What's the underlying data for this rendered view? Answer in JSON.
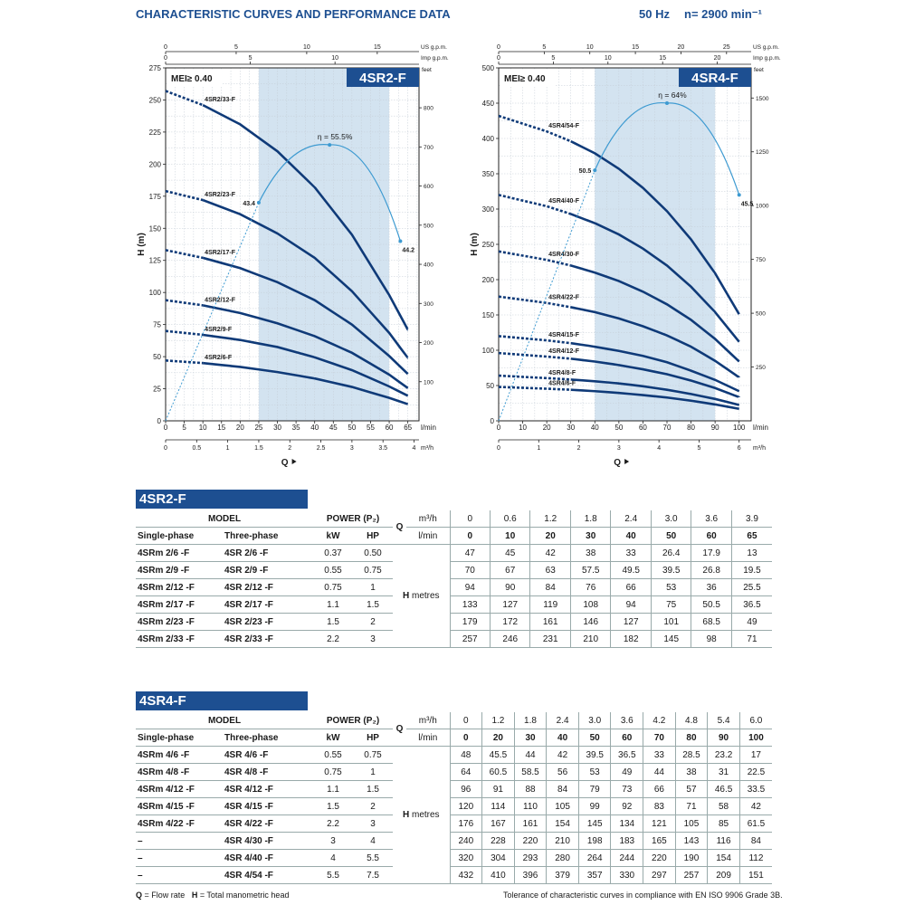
{
  "header": {
    "title": "CHARACTERISTIC CURVES AND PERFORMANCE DATA",
    "freq": "50 Hz",
    "speed": "n= 2900 min⁻¹"
  },
  "chart_data": [
    {
      "type": "line",
      "title": "4SR2-F",
      "mei": "MEI≥ 0.40",
      "xlabel": "Q",
      "ylabel": "H (m)",
      "x_unit": "l/min",
      "x_unit_m3": "m³/h",
      "top_unit_us": "US g.p.m.",
      "top_unit_imp": "Imp g.p.m.",
      "right_unit": "feet",
      "xlim": [
        0,
        68
      ],
      "ylim": [
        0,
        275
      ],
      "x_ticks": [
        0,
        5,
        10,
        15,
        20,
        25,
        30,
        35,
        40,
        45,
        50,
        55,
        60,
        65
      ],
      "y_ticks": [
        0,
        25,
        50,
        75,
        100,
        125,
        150,
        175,
        200,
        225,
        250,
        275
      ],
      "m3h_ticks": [
        "0",
        "0.5",
        "1",
        "1.5",
        "2",
        "2.5",
        "3",
        "3.5",
        "4"
      ],
      "us_ticks": [
        "0",
        "5",
        "10",
        "15"
      ],
      "imp_ticks": [
        "0",
        "5",
        "10"
      ],
      "feet_ticks": [
        "100",
        "200",
        "300",
        "400",
        "500",
        "600",
        "700",
        "800"
      ],
      "bep_range": [
        25,
        60
      ],
      "series": [
        {
          "name": "4SR2/6-F",
          "x": [
            0,
            10,
            20,
            30,
            40,
            50,
            60,
            65
          ],
          "values": [
            47,
            45,
            42,
            38,
            33,
            26.4,
            17.9,
            13
          ]
        },
        {
          "name": "4SR2/9-F",
          "x": [
            0,
            10,
            20,
            30,
            40,
            50,
            60,
            65
          ],
          "values": [
            70,
            67,
            63,
            57.5,
            49.5,
            39.5,
            26.8,
            19.5
          ]
        },
        {
          "name": "4SR2/12-F",
          "x": [
            0,
            10,
            20,
            30,
            40,
            50,
            60,
            65
          ],
          "values": [
            94,
            90,
            84,
            76,
            66,
            53,
            36,
            25.5
          ]
        },
        {
          "name": "4SR2/17-F",
          "x": [
            0,
            10,
            20,
            30,
            40,
            50,
            60,
            65
          ],
          "values": [
            133,
            127,
            119,
            108,
            94,
            75,
            50.5,
            36.5
          ]
        },
        {
          "name": "4SR2/23-F",
          "x": [
            0,
            10,
            20,
            30,
            40,
            50,
            60,
            65
          ],
          "values": [
            179,
            172,
            161,
            146,
            127,
            101,
            68.5,
            49
          ]
        },
        {
          "name": "4SR2/33-F",
          "x": [
            0,
            10,
            20,
            30,
            40,
            50,
            60,
            65
          ],
          "values": [
            257,
            246,
            231,
            210,
            182,
            145,
            98,
            71
          ]
        }
      ],
      "efficiency": {
        "label": "η = 55.5%",
        "peak_x": 44,
        "peak_label": "55.5",
        "points": [
          {
            "x": 25,
            "label": "43.4"
          },
          {
            "x": 63,
            "label": "44.2"
          }
        ]
      }
    },
    {
      "type": "line",
      "title": "4SR4-F",
      "mei": "MEI≥ 0.40",
      "xlabel": "Q",
      "ylabel": "H (m)",
      "x_unit": "l/min",
      "x_unit_m3": "m³/h",
      "top_unit_us": "US g.p.m.",
      "top_unit_imp": "Imp g.p.m.",
      "right_unit": "feet",
      "xlim": [
        0,
        105
      ],
      "ylim": [
        0,
        500
      ],
      "x_ticks": [
        0,
        10,
        20,
        30,
        40,
        50,
        60,
        70,
        80,
        90,
        100
      ],
      "y_ticks": [
        0,
        50,
        100,
        150,
        200,
        250,
        300,
        350,
        400,
        450,
        500
      ],
      "m3h_ticks": [
        "0",
        "1",
        "2",
        "3",
        "4",
        "5",
        "6"
      ],
      "us_ticks": [
        "0",
        "5",
        "10",
        "15",
        "20",
        "25"
      ],
      "imp_ticks": [
        "0",
        "5",
        "10",
        "15",
        "20"
      ],
      "feet_ticks": [
        "250",
        "500",
        "750",
        "1000",
        "1250",
        "1500"
      ],
      "bep_range": [
        40,
        90
      ],
      "series": [
        {
          "name": "4SR4/6-F",
          "x": [
            0,
            20,
            30,
            40,
            50,
            60,
            70,
            80,
            90,
            100
          ],
          "values": [
            48,
            45.5,
            44,
            42,
            39.5,
            36.5,
            33,
            28.5,
            23.2,
            17
          ]
        },
        {
          "name": "4SR4/8-F",
          "x": [
            0,
            20,
            30,
            40,
            50,
            60,
            70,
            80,
            90,
            100
          ],
          "values": [
            64,
            60.5,
            58.5,
            56,
            53,
            49,
            44,
            38,
            31,
            22.5
          ]
        },
        {
          "name": "4SR4/12-F",
          "x": [
            0,
            20,
            30,
            40,
            50,
            60,
            70,
            80,
            90,
            100
          ],
          "values": [
            96,
            91,
            88,
            84,
            79,
            73,
            66,
            57,
            46.5,
            33.5
          ]
        },
        {
          "name": "4SR4/15-F",
          "x": [
            0,
            20,
            30,
            40,
            50,
            60,
            70,
            80,
            90,
            100
          ],
          "values": [
            120,
            114,
            110,
            105,
            99,
            92,
            83,
            71,
            58,
            42
          ]
        },
        {
          "name": "4SR4/22-F",
          "x": [
            0,
            20,
            30,
            40,
            50,
            60,
            70,
            80,
            90,
            100
          ],
          "values": [
            176,
            167,
            161,
            154,
            145,
            134,
            121,
            105,
            85,
            61.5
          ]
        },
        {
          "name": "4SR4/30-F",
          "x": [
            0,
            20,
            30,
            40,
            50,
            60,
            70,
            80,
            90,
            100
          ],
          "values": [
            240,
            228,
            220,
            210,
            198,
            183,
            165,
            143,
            116,
            84
          ]
        },
        {
          "name": "4SR4/40-F",
          "x": [
            0,
            20,
            30,
            40,
            50,
            60,
            70,
            80,
            90,
            100
          ],
          "values": [
            320,
            304,
            293,
            280,
            264,
            244,
            220,
            190,
            154,
            112
          ]
        },
        {
          "name": "4SR4/54-F",
          "x": [
            0,
            20,
            30,
            40,
            50,
            60,
            70,
            80,
            90,
            100
          ],
          "values": [
            432,
            410,
            396,
            379,
            357,
            330,
            297,
            257,
            209,
            151
          ]
        }
      ],
      "efficiency": {
        "label": "η = 64%",
        "peak_x": 70,
        "peak_label": "64",
        "points": [
          {
            "x": 40,
            "label": "50.5"
          },
          {
            "x": 100,
            "label": "45.5"
          }
        ]
      }
    }
  ],
  "tables": [
    {
      "title": "4SR2-F",
      "headers": {
        "model": "MODEL",
        "single": "Single-phase",
        "three": "Three-phase",
        "power": "POWER (P₂)",
        "kw": "kW",
        "hp": "HP",
        "q": "Q",
        "m3h": "m³/h",
        "lmin": "l/min",
        "h": "H",
        "metres": "metres"
      },
      "q_m3h": [
        "0",
        "0.6",
        "1.2",
        "1.8",
        "2.4",
        "3.0",
        "3.6",
        "3.9"
      ],
      "q_lmin": [
        "0",
        "10",
        "20",
        "30",
        "40",
        "50",
        "60",
        "65"
      ],
      "rows": [
        {
          "single": "4SRm 2/6   -F",
          "three": "4SR 2/6   -F",
          "kw": "0.37",
          "hp": "0.50",
          "h": [
            "47",
            "45",
            "42",
            "38",
            "33",
            "26.4",
            "17.9",
            "13"
          ]
        },
        {
          "single": "4SRm 2/9   -F",
          "three": "4SR 2/9   -F",
          "kw": "0.55",
          "hp": "0.75",
          "h": [
            "70",
            "67",
            "63",
            "57.5",
            "49.5",
            "39.5",
            "26.8",
            "19.5"
          ]
        },
        {
          "single": "4SRm 2/12 -F",
          "three": "4SR 2/12 -F",
          "kw": "0.75",
          "hp": "1",
          "h": [
            "94",
            "90",
            "84",
            "76",
            "66",
            "53",
            "36",
            "25.5"
          ]
        },
        {
          "single": "4SRm 2/17 -F",
          "three": "4SR 2/17 -F",
          "kw": "1.1",
          "hp": "1.5",
          "h": [
            "133",
            "127",
            "119",
            "108",
            "94",
            "75",
            "50.5",
            "36.5"
          ]
        },
        {
          "single": "4SRm 2/23 -F",
          "three": "4SR 2/23 -F",
          "kw": "1.5",
          "hp": "2",
          "h": [
            "179",
            "172",
            "161",
            "146",
            "127",
            "101",
            "68.5",
            "49"
          ]
        },
        {
          "single": "4SRm 2/33 -F",
          "three": "4SR 2/33 -F",
          "kw": "2.2",
          "hp": "3",
          "h": [
            "257",
            "246",
            "231",
            "210",
            "182",
            "145",
            "98",
            "71"
          ]
        }
      ]
    },
    {
      "title": "4SR4-F",
      "headers": {
        "model": "MODEL",
        "single": "Single-phase",
        "three": "Three-phase",
        "power": "POWER (P₂)",
        "kw": "kW",
        "hp": "HP",
        "q": "Q",
        "m3h": "m³/h",
        "lmin": "l/min",
        "h": "H",
        "metres": "metres"
      },
      "q_m3h": [
        "0",
        "1.2",
        "1.8",
        "2.4",
        "3.0",
        "3.6",
        "4.2",
        "4.8",
        "5.4",
        "6.0"
      ],
      "q_lmin": [
        "0",
        "20",
        "30",
        "40",
        "50",
        "60",
        "70",
        "80",
        "90",
        "100"
      ],
      "rows": [
        {
          "single": "4SRm 4/6   -F",
          "three": "4SR 4/6   -F",
          "kw": "0.55",
          "hp": "0.75",
          "h": [
            "48",
            "45.5",
            "44",
            "42",
            "39.5",
            "36.5",
            "33",
            "28.5",
            "23.2",
            "17"
          ]
        },
        {
          "single": "4SRm 4/8   -F",
          "three": "4SR 4/8   -F",
          "kw": "0.75",
          "hp": "1",
          "h": [
            "64",
            "60.5",
            "58.5",
            "56",
            "53",
            "49",
            "44",
            "38",
            "31",
            "22.5"
          ]
        },
        {
          "single": "4SRm 4/12 -F",
          "three": "4SR 4/12 -F",
          "kw": "1.1",
          "hp": "1.5",
          "h": [
            "96",
            "91",
            "88",
            "84",
            "79",
            "73",
            "66",
            "57",
            "46.5",
            "33.5"
          ]
        },
        {
          "single": "4SRm 4/15 -F",
          "three": "4SR 4/15 -F",
          "kw": "1.5",
          "hp": "2",
          "h": [
            "120",
            "114",
            "110",
            "105",
            "99",
            "92",
            "83",
            "71",
            "58",
            "42"
          ]
        },
        {
          "single": "4SRm 4/22 -F",
          "three": "4SR 4/22 -F",
          "kw": "2.2",
          "hp": "3",
          "h": [
            "176",
            "167",
            "161",
            "154",
            "145",
            "134",
            "121",
            "105",
            "85",
            "61.5"
          ]
        },
        {
          "single": "–",
          "three": "4SR 4/30 -F",
          "kw": "3",
          "hp": "4",
          "h": [
            "240",
            "228",
            "220",
            "210",
            "198",
            "183",
            "165",
            "143",
            "116",
            "84"
          ]
        },
        {
          "single": "–",
          "three": "4SR 4/40 -F",
          "kw": "4",
          "hp": "5.5",
          "h": [
            "320",
            "304",
            "293",
            "280",
            "264",
            "244",
            "220",
            "190",
            "154",
            "112"
          ]
        },
        {
          "single": "–",
          "three": "4SR 4/54 -F",
          "kw": "5.5",
          "hp": "7.5",
          "h": [
            "432",
            "410",
            "396",
            "379",
            "357",
            "330",
            "297",
            "257",
            "209",
            "151"
          ]
        }
      ]
    }
  ],
  "footer": {
    "legend_q": "Q",
    "legend_q_text": " = Flow rate",
    "legend_h": "H",
    "legend_h_text": " = Total manometric head",
    "tolerance": "Tolerance of characteristic curves in compliance with EN ISO 9906 Grade 3B."
  },
  "colors": {
    "curve": "#0f3a78",
    "efficiency": "#3d9ad1",
    "band": "#d3e3f0",
    "brand": "#1d4f91",
    "grid": "#9aa7b3"
  }
}
